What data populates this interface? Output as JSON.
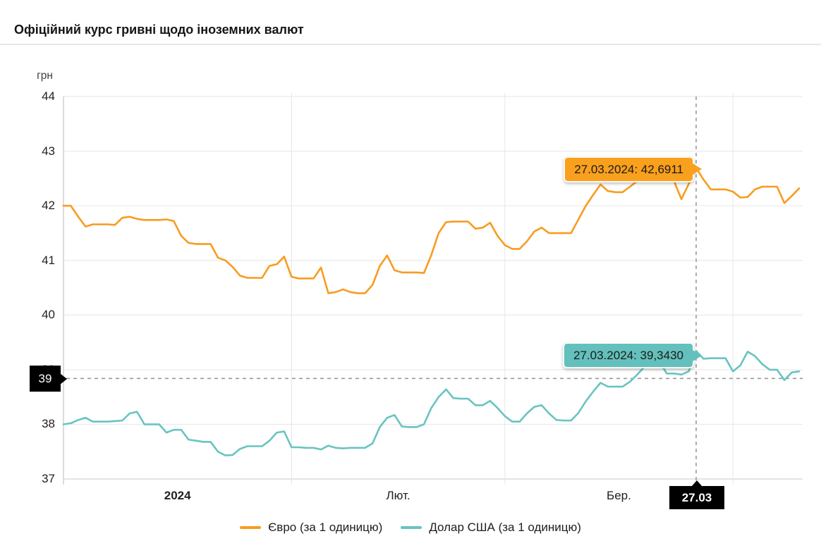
{
  "header": {
    "title": "Офіційний курс гривні щодо іноземних валют"
  },
  "chart_data": {
    "type": "line",
    "title": "Офіційний курс гривні щодо іноземних валют",
    "ylabel": "грн",
    "ylim": [
      37,
      44
    ],
    "yticks": [
      44,
      43,
      42,
      41,
      40,
      39,
      38,
      37
    ],
    "x_labels": [
      {
        "text": "2024",
        "bold": true
      },
      {
        "text": "Лют.",
        "bold": false
      },
      {
        "text": "Бер.",
        "bold": false
      }
    ],
    "month_boundaries": [
      0,
      31,
      60,
      91
    ],
    "grid": true,
    "legend_position": "bottom",
    "colors": {
      "euro": "#f89c20",
      "usd": "#68c4c0",
      "euro_tooltip_bg": "#f9a01d",
      "usd_tooltip_bg": "#63c0bc",
      "gridline": "#e6e6e6",
      "axis": "#c6c6c6",
      "crosshair": "#9a9a9a",
      "badge_bg": "#000000",
      "badge_text": "#ffffff"
    },
    "series": [
      {
        "name": "Євро (за 1 одиницю)",
        "key": "euro",
        "color": "#f89c20",
        "values": [
          42.0,
          42.0,
          41.8,
          41.62,
          41.66,
          41.66,
          41.66,
          41.65,
          41.78,
          41.8,
          41.76,
          41.74,
          41.74,
          41.74,
          41.75,
          41.72,
          41.45,
          41.32,
          41.3,
          41.3,
          41.3,
          41.05,
          41.0,
          40.88,
          40.72,
          40.68,
          40.68,
          40.68,
          40.9,
          40.93,
          41.07,
          40.7,
          40.67,
          40.67,
          40.67,
          40.87,
          40.4,
          40.42,
          40.47,
          40.42,
          40.4,
          40.4,
          40.55,
          40.9,
          41.09,
          40.82,
          40.78,
          40.78,
          40.78,
          40.77,
          41.1,
          41.5,
          41.7,
          41.71,
          41.71,
          41.71,
          41.58,
          41.6,
          41.69,
          41.45,
          41.28,
          41.21,
          41.21,
          41.35,
          41.53,
          41.6,
          41.5,
          41.5,
          41.5,
          41.5,
          41.75,
          42.0,
          42.2,
          42.39,
          42.27,
          42.25,
          42.25,
          42.35,
          42.45,
          42.5,
          42.52,
          42.45,
          42.45,
          42.45,
          42.12,
          42.4,
          42.6911,
          42.48,
          42.3,
          42.3,
          42.3,
          42.26,
          42.15,
          42.16,
          42.3,
          42.35,
          42.35,
          42.35,
          42.05,
          42.18,
          42.32
        ]
      },
      {
        "name": "Долар США (за 1 одиницю)",
        "key": "usd",
        "color": "#68c4c0",
        "values": [
          38.0,
          38.02,
          38.08,
          38.12,
          38.05,
          38.05,
          38.05,
          38.06,
          38.07,
          38.2,
          38.23,
          38.0,
          38.0,
          38.0,
          37.85,
          37.9,
          37.9,
          37.72,
          37.7,
          37.68,
          37.68,
          37.5,
          37.43,
          37.44,
          37.55,
          37.6,
          37.6,
          37.6,
          37.7,
          37.85,
          37.87,
          37.58,
          37.58,
          37.57,
          37.57,
          37.54,
          37.61,
          37.57,
          37.56,
          37.57,
          37.57,
          37.57,
          37.65,
          37.95,
          38.12,
          38.17,
          37.96,
          37.95,
          37.95,
          38.0,
          38.3,
          38.5,
          38.64,
          38.48,
          38.47,
          38.47,
          38.35,
          38.35,
          38.43,
          38.3,
          38.15,
          38.05,
          38.05,
          38.2,
          38.32,
          38.35,
          38.2,
          38.08,
          38.07,
          38.07,
          38.21,
          38.42,
          38.6,
          38.76,
          38.69,
          38.69,
          38.69,
          38.78,
          38.91,
          39.06,
          39.2,
          39.15,
          38.93,
          38.93,
          38.91,
          38.97,
          39.343,
          39.2,
          39.21,
          39.21,
          39.21,
          38.97,
          39.08,
          39.33,
          39.25,
          39.1,
          39.0,
          39.0,
          38.81,
          38.95,
          38.97
        ]
      }
    ],
    "highlight": {
      "index": 86,
      "date_label": "27.03",
      "y_axis_label": "39",
      "cursor_value": 38.84,
      "euro_tooltip": "27.03.2024: 42,6911",
      "usd_tooltip": "27.03.2024: 39,3430",
      "euro_value": 42.6911,
      "usd_value": 39.343
    }
  }
}
